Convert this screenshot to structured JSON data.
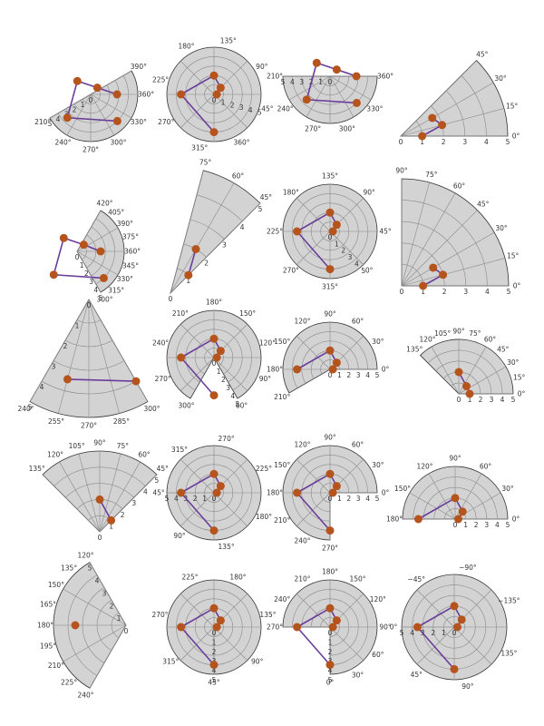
{
  "colors": {
    "sector_fill": "#d3d3d3",
    "grid": "#8a8a8a",
    "line": "#6a3d9a",
    "marker": "#b5541c"
  },
  "chart_data": [
    {
      "type": "polar-line",
      "theta_range_deg": [
        210,
        390
      ],
      "r_ticks": [
        0,
        1,
        2,
        3,
        4,
        5
      ],
      "theta_labels": [
        "210°",
        "240°",
        "270°",
        "300°",
        "330°",
        "360°",
        "390°"
      ],
      "points": [
        {
          "theta": 0,
          "r": 2.8
        },
        {
          "theta": 45,
          "r": 1.0
        },
        {
          "theta": 135,
          "r": 2.0
        },
        {
          "theta": 225,
          "r": 3.5
        },
        {
          "theta": 315,
          "r": 4.0
        }
      ]
    },
    {
      "type": "polar-line",
      "theta_range_deg": [
        -15,
        345
      ],
      "r_ticks": [
        0,
        1,
        2,
        3,
        4,
        5
      ],
      "theta_labels": [
        "45°",
        "90°",
        "135°",
        "180°",
        "225°",
        "270°",
        "315°",
        "360°"
      ],
      "points": [
        {
          "theta": 0,
          "r": 0.3
        },
        {
          "theta": 45,
          "r": 1.0
        },
        {
          "theta": 90,
          "r": 2.0
        },
        {
          "theta": 180,
          "r": 3.5
        },
        {
          "theta": 270,
          "r": 4.0
        }
      ]
    },
    {
      "type": "polar-line",
      "theta_range_deg": [
        -180,
        0
      ],
      "r_ticks": [
        0,
        1,
        2,
        3,
        4,
        5
      ],
      "theta_labels": [
        "210°",
        "240°",
        "270°",
        "300°",
        "330°",
        "360°"
      ],
      "points": [
        {
          "theta": 0,
          "r": 2.8
        },
        {
          "theta": 45,
          "r": 1.0
        },
        {
          "theta": 135,
          "r": 2.0
        },
        {
          "theta": 225,
          "r": 3.5
        },
        {
          "theta": 315,
          "r": 4.0
        }
      ]
    },
    {
      "type": "polar-line",
      "theta_range_deg": [
        0,
        45
      ],
      "r_ticks": [
        0,
        1,
        2,
        3,
        4,
        5
      ],
      "theta_labels": [
        "0°",
        "15°",
        "30°",
        "45°"
      ],
      "points": [
        {
          "theta": 0,
          "r": 1.0
        },
        {
          "theta": 15,
          "r": 2.0
        },
        {
          "theta": 30,
          "r": 1.7
        }
      ]
    },
    {
      "type": "polar-line",
      "theta_range_deg": [
        300,
        420
      ],
      "r_ticks": [
        0,
        1,
        2,
        3,
        4,
        5
      ],
      "theta_labels": [
        "300°",
        "315°",
        "330°",
        "345°",
        "360°",
        "375°",
        "390°",
        "405°",
        "420°"
      ],
      "points": [
        {
          "theta": 0,
          "r": 2.5
        },
        {
          "theta": 45,
          "r": 1.0
        },
        {
          "theta": 135,
          "r": 2.0
        },
        {
          "theta": 225,
          "r": 3.5
        },
        {
          "theta": 315,
          "r": 4.0
        }
      ]
    },
    {
      "type": "polar-line",
      "theta_range_deg": [
        45,
        75
      ],
      "r_ticks": [
        0,
        1,
        2,
        3,
        4,
        5
      ],
      "theta_labels": [
        "45°",
        "60°",
        "75°"
      ],
      "points": [
        {
          "theta": 45,
          "r": 1.0
        },
        {
          "theta": 60,
          "r": 2.0
        }
      ]
    },
    {
      "type": "polar-line",
      "theta_range_deg": [
        -45,
        315
      ],
      "r_ticks": [
        0,
        1,
        2,
        3,
        4,
        5
      ],
      "theta_labels": [
        "0°",
        "45°",
        "90°",
        "135°",
        "180°",
        "225°",
        "270°",
        "315°"
      ],
      "points": [
        {
          "theta": 0,
          "r": 0.3
        },
        {
          "theta": 45,
          "r": 1.0
        },
        {
          "theta": 90,
          "r": 2.0
        },
        {
          "theta": 180,
          "r": 3.5
        },
        {
          "theta": 270,
          "r": 4.0
        }
      ]
    },
    {
      "type": "polar-line",
      "theta_range_deg": [
        0,
        90
      ],
      "r_ticks": [
        0,
        1,
        2,
        3,
        4,
        5
      ],
      "theta_labels": [
        "0°",
        "15°",
        "30°",
        "45°",
        "60°",
        "75°",
        "90°"
      ],
      "points": [
        {
          "theta": 0,
          "r": 1.0
        },
        {
          "theta": 15,
          "r": 2.0
        },
        {
          "theta": 30,
          "r": 1.7
        }
      ]
    },
    {
      "type": "polar-line",
      "theta_range_deg": [
        240,
        300
      ],
      "r_ticks": [
        0,
        1,
        2,
        3,
        4,
        5
      ],
      "theta_labels": [
        "240°",
        "255°",
        "270°",
        "285°",
        "300°"
      ],
      "points": [
        {
          "theta": 255,
          "r": 3.5
        },
        {
          "theta": 300,
          "r": 4.0
        }
      ]
    },
    {
      "type": "polar-line",
      "theta_range_deg": [
        -60,
        240
      ],
      "r_ticks": [
        0,
        1,
        2,
        3,
        4,
        5
      ],
      "theta_labels": [
        "60°",
        "90°",
        "120°",
        "150°",
        "180°",
        "210°",
        "240°",
        "270°",
        "300°"
      ],
      "points": [
        {
          "theta": 0,
          "r": 0.3
        },
        {
          "theta": 45,
          "r": 1.0
        },
        {
          "theta": 90,
          "r": 2.0
        },
        {
          "theta": 180,
          "r": 3.5
        },
        {
          "theta": 270,
          "r": 4.0
        }
      ]
    },
    {
      "type": "polar-line",
      "theta_range_deg": [
        0,
        210
      ],
      "r_ticks": [
        0,
        1,
        2,
        3,
        4,
        5
      ],
      "theta_labels": [
        "0°",
        "30°",
        "60°",
        "90°",
        "120°",
        "150°",
        "180°",
        "210°"
      ],
      "points": [
        {
          "theta": 0,
          "r": 0.3
        },
        {
          "theta": 45,
          "r": 1.0
        },
        {
          "theta": 90,
          "r": 2.0
        },
        {
          "theta": 180,
          "r": 3.5
        }
      ]
    },
    {
      "type": "polar-line",
      "theta_range_deg": [
        0,
        135
      ],
      "r_ticks": [
        0,
        1,
        2,
        3,
        4,
        5
      ],
      "theta_labels": [
        "0°",
        "15°",
        "30°",
        "45°",
        "60°",
        "75°",
        "90°",
        "105°",
        "120°",
        "135°"
      ],
      "points": [
        {
          "theta": 0,
          "r": 1.0
        },
        {
          "theta": 45,
          "r": 1.0
        },
        {
          "theta": 90,
          "r": 2.0
        }
      ]
    },
    {
      "type": "polar-line",
      "theta_range_deg": [
        45,
        135
      ],
      "r_ticks": [
        0,
        1,
        2,
        3,
        4,
        5
      ],
      "theta_labels": [
        "45°",
        "60°",
        "75°",
        "90°",
        "105°",
        "120°",
        "135°"
      ],
      "points": [
        {
          "theta": 45,
          "r": 1.0
        },
        {
          "theta": 90,
          "r": 2.0
        }
      ]
    },
    {
      "type": "polar-line",
      "theta_range_deg": [
        -180,
        180
      ],
      "r_ticks": [
        0,
        1,
        2,
        3,
        4,
        5
      ],
      "theta_labels": [
        "45°",
        "90°",
        "135°",
        "180°",
        "225°",
        "270°",
        "315°"
      ],
      "points": [
        {
          "theta": 0,
          "r": 0.3
        },
        {
          "theta": 45,
          "r": 1.0
        },
        {
          "theta": 90,
          "r": 2.0
        },
        {
          "theta": 180,
          "r": 3.5
        },
        {
          "theta": 270,
          "r": 4.0
        }
      ]
    },
    {
      "type": "polar-line",
      "theta_range_deg": [
        0,
        270
      ],
      "r_ticks": [
        0,
        1,
        2,
        3,
        4,
        5
      ],
      "theta_labels": [
        "0°",
        "30°",
        "60°",
        "90°",
        "120°",
        "150°",
        "180°",
        "210°",
        "240°",
        "270°"
      ],
      "points": [
        {
          "theta": 0,
          "r": 0.3
        },
        {
          "theta": 45,
          "r": 1.0
        },
        {
          "theta": 90,
          "r": 2.0
        },
        {
          "theta": 180,
          "r": 3.5
        },
        {
          "theta": 270,
          "r": 4.0
        }
      ]
    },
    {
      "type": "polar-line",
      "theta_range_deg": [
        0,
        180
      ],
      "r_ticks": [
        0,
        1,
        2,
        3,
        4,
        5
      ],
      "theta_labels": [
        "0°",
        "30°",
        "60°",
        "90°",
        "120°",
        "150°",
        "180°"
      ],
      "points": [
        {
          "theta": 0,
          "r": 0.3
        },
        {
          "theta": 45,
          "r": 1.0
        },
        {
          "theta": 90,
          "r": 2.0
        },
        {
          "theta": 180,
          "r": 3.5
        }
      ]
    },
    {
      "type": "polar-line",
      "theta_range_deg": [
        120,
        240
      ],
      "r_ticks": [
        0,
        1,
        2,
        3,
        4,
        5
      ],
      "theta_labels": [
        "120°",
        "135°",
        "150°",
        "165°",
        "180°",
        "195°",
        "210°",
        "225°",
        "240°"
      ],
      "points": [
        {
          "theta": 180,
          "r": 3.5
        }
      ]
    },
    {
      "type": "polar-line",
      "theta_range_deg": [
        -90,
        270
      ],
      "r_ticks": [
        0,
        1,
        2,
        3,
        4,
        5
      ],
      "theta_labels": [
        "45°",
        "90°",
        "135°",
        "180°",
        "225°",
        "270°",
        "315°"
      ],
      "points": [
        {
          "theta": 0,
          "r": 0.3
        },
        {
          "theta": 45,
          "r": 1.0
        },
        {
          "theta": 90,
          "r": 2.0
        },
        {
          "theta": 180,
          "r": 3.5
        },
        {
          "theta": 270,
          "r": 4.0
        }
      ]
    },
    {
      "type": "polar-line",
      "theta_range_deg": [
        -90,
        180
      ],
      "r_ticks": [
        0,
        1,
        2,
        3,
        4,
        5
      ],
      "theta_labels": [
        "0°",
        "30°",
        "60°",
        "90°",
        "120°",
        "150°",
        "180°",
        "210°",
        "240°",
        "270°"
      ],
      "points": [
        {
          "theta": 0,
          "r": 0.3
        },
        {
          "theta": 45,
          "r": 1.0
        },
        {
          "theta": 90,
          "r": 2.0
        },
        {
          "theta": 180,
          "r": 3.5
        },
        {
          "theta": 270,
          "r": 4.0
        }
      ]
    },
    {
      "type": "polar-line",
      "theta_range_deg": [
        -180,
        180
      ],
      "r_ticks": [
        0,
        1,
        2,
        3,
        4,
        5
      ],
      "theta_labels": [
        "0°",
        "45°",
        "90°",
        "135°",
        "−135°",
        "−90°",
        "−45°"
      ],
      "points": [
        {
          "theta": 0,
          "r": 0.3
        },
        {
          "theta": 45,
          "r": 1.0
        },
        {
          "theta": 90,
          "r": 2.0
        },
        {
          "theta": 180,
          "r": 3.5
        },
        {
          "theta": 270,
          "r": 4.0
        }
      ]
    }
  ]
}
